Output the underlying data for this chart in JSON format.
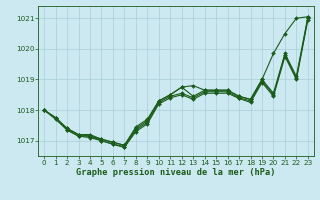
{
  "title": "Graphe pression niveau de la mer (hPa)",
  "bg_color": "#cce8f0",
  "grid_color": "#a8cdd8",
  "line_color": "#1a5c1a",
  "marker_color": "#1a5c1a",
  "xlim": [
    -0.5,
    23.5
  ],
  "ylim": [
    1016.5,
    1021.4
  ],
  "yticks": [
    1017,
    1018,
    1019,
    1020,
    1021
  ],
  "xticks": [
    0,
    1,
    2,
    3,
    4,
    5,
    6,
    7,
    8,
    9,
    10,
    11,
    12,
    13,
    14,
    15,
    16,
    17,
    18,
    19,
    20,
    21,
    22,
    23
  ],
  "series": [
    [
      1018.0,
      1017.75,
      1017.4,
      1017.2,
      1017.2,
      1017.05,
      1016.95,
      1016.85,
      1017.45,
      1017.7,
      1018.3,
      1018.5,
      1018.75,
      1018.8,
      1018.65,
      1018.65,
      1018.65,
      1018.45,
      1018.35,
      1019.0,
      1019.85,
      1020.5,
      1021.0,
      1021.05
    ],
    [
      1018.0,
      1017.75,
      1017.4,
      1017.2,
      1017.15,
      1017.05,
      1016.95,
      1016.85,
      1017.4,
      1017.65,
      1018.3,
      1018.5,
      1018.75,
      1018.45,
      1018.65,
      1018.65,
      1018.65,
      1018.45,
      1018.35,
      1019.0,
      1018.55,
      1019.85,
      1019.1,
      1021.05
    ],
    [
      1018.0,
      1017.75,
      1017.35,
      1017.15,
      1017.15,
      1017.0,
      1016.9,
      1016.8,
      1017.35,
      1017.6,
      1018.25,
      1018.45,
      1018.55,
      1018.4,
      1018.6,
      1018.6,
      1018.6,
      1018.4,
      1018.3,
      1018.95,
      1018.5,
      1019.8,
      1019.05,
      1021.0
    ],
    [
      1018.0,
      1017.7,
      1017.35,
      1017.15,
      1017.1,
      1017.0,
      1016.88,
      1016.78,
      1017.3,
      1017.55,
      1018.2,
      1018.4,
      1018.5,
      1018.35,
      1018.55,
      1018.55,
      1018.55,
      1018.38,
      1018.25,
      1018.9,
      1018.45,
      1019.75,
      1019.0,
      1020.95
    ]
  ],
  "title_fontsize": 6.2,
  "tick_fontsize": 5.2
}
